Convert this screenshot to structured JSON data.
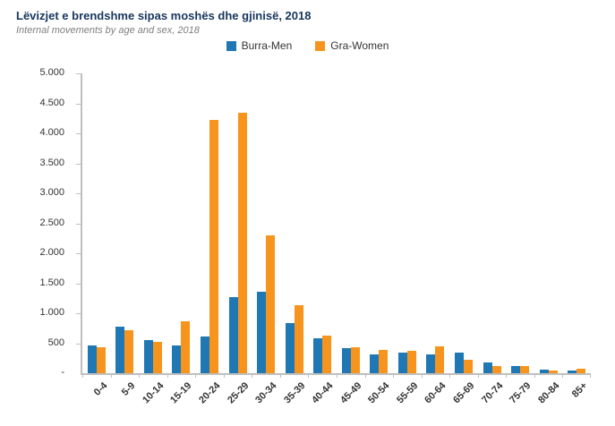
{
  "title": "Lëvizjet e brendshme sipas moshës dhe gjinisë, 2018",
  "subtitle": "Internal movements by age and sex, 2018",
  "legend": [
    {
      "label": "Burra-Men",
      "color": "#1F77B4"
    },
    {
      "label": "Gra-Women",
      "color": "#F7941E"
    }
  ],
  "colors": {
    "men": "#1F77B4",
    "women": "#F7941E",
    "axis": "#BFBFBF",
    "title_text": "#17365D",
    "subtitle_text": "#7F7F7F",
    "tick_text": "#333333"
  },
  "chart_data": {
    "type": "bar",
    "title": "Lëvizjet e brendshme sipas moshës dhe gjinisë, 2018",
    "subtitle": "Internal movements by age and sex, 2018",
    "categories": [
      "0-4",
      "5-9",
      "10-14",
      "15-19",
      "20-24",
      "25-29",
      "30-34",
      "35-39",
      "40-44",
      "45-49",
      "50-54",
      "55-59",
      "60-64",
      "65-69",
      "70-74",
      "75-79",
      "80-84",
      "85+"
    ],
    "series": [
      {
        "name": "Burra-Men",
        "color": "#1F77B4",
        "values": [
          470,
          770,
          550,
          460,
          610,
          1270,
          1360,
          840,
          580,
          420,
          320,
          345,
          310,
          340,
          180,
          115,
          60,
          40
        ]
      },
      {
        "name": "Gra-Women",
        "color": "#F7941E",
        "values": [
          430,
          710,
          530,
          860,
          4220,
          4350,
          2300,
          1130,
          630,
          440,
          395,
          380,
          450,
          230,
          120,
          120,
          40,
          70
        ]
      }
    ],
    "xlabel": "",
    "ylabel": "",
    "ylim": [
      0,
      5000
    ],
    "y_ticks": {
      "values": [
        5000,
        4500,
        4000,
        3500,
        3000,
        2500,
        2000,
        1500,
        1000,
        500,
        0
      ],
      "labels": [
        "5.000",
        "4.500",
        "4.000",
        "3.500",
        "3.000",
        "2.500",
        "2.000",
        "1.500",
        "1.000",
        "500",
        "-"
      ]
    },
    "grid": false,
    "legend_position": "top-center"
  }
}
